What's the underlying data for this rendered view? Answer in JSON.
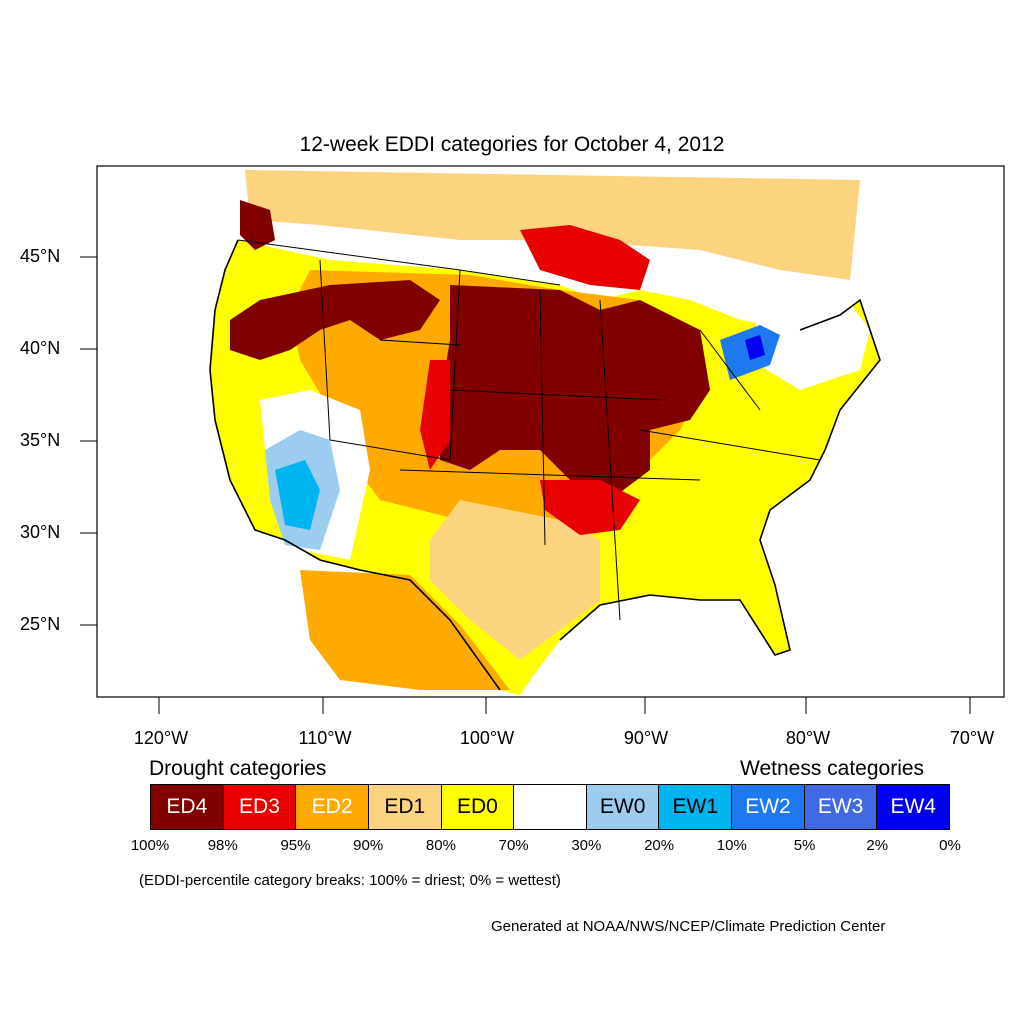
{
  "title": "12-week EDDI categories for October 4, 2012",
  "lat_labels": [
    "45°N",
    "40°N",
    "35°N",
    "30°N",
    "25°N"
  ],
  "lon_labels": [
    "120°W",
    "110°W",
    "100°W",
    "90°W",
    "80°W",
    "70°W"
  ],
  "legend": {
    "drought_heading": "Drought categories",
    "wetness_heading": "Wetness categories",
    "categories": [
      {
        "label": "ED4",
        "color": "#800000",
        "text_color": "#ffffff"
      },
      {
        "label": "ED3",
        "color": "#e60000",
        "text_color": "#ffffff"
      },
      {
        "label": "ED2",
        "color": "#ffaa00",
        "text_color": "#ffffff"
      },
      {
        "label": "ED1",
        "color": "#fcd37f",
        "text_color": "#000000"
      },
      {
        "label": "ED0",
        "color": "#ffff00",
        "text_color": "#000000"
      },
      {
        "label": "",
        "color": "#ffffff",
        "text_color": "#000000"
      },
      {
        "label": "EW0",
        "color": "#9ccdef",
        "text_color": "#000000"
      },
      {
        "label": "EW1",
        "color": "#00b4f0",
        "text_color": "#000000"
      },
      {
        "label": "EW2",
        "color": "#1e78f0",
        "text_color": "#ffffff"
      },
      {
        "label": "EW3",
        "color": "#4169e1",
        "text_color": "#ffffff"
      },
      {
        "label": "EW4",
        "color": "#0000f0",
        "text_color": "#ffffff"
      }
    ],
    "breaks": [
      "100%",
      "98%",
      "95%",
      "90%",
      "80%",
      "70%",
      "30%",
      "20%",
      "10%",
      "5%",
      "2%",
      "0%"
    ]
  },
  "note": "(EDDI-percentile category breaks: 100% = driest; 0% = wettest)",
  "credit": "Generated at NOAA/NWS/NCEP/Climate Prediction Center"
}
